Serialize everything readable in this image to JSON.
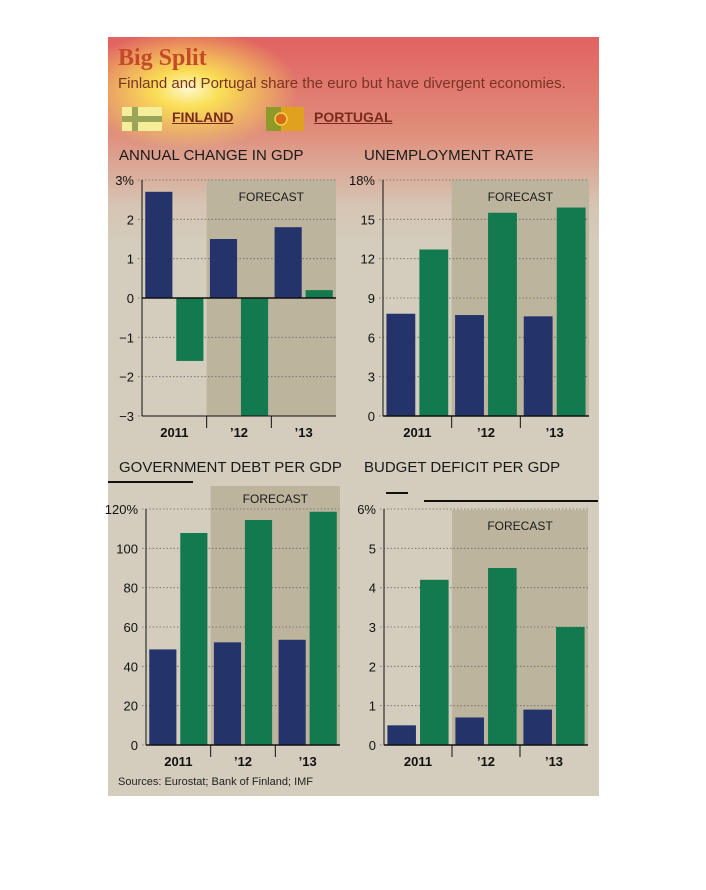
{
  "header": {
    "title": "Big Split",
    "subtitle": "Finland and Portugal share the euro but have divergent economies."
  },
  "legend": {
    "finland": "FINLAND",
    "portugal": "PORTUGAL"
  },
  "colors": {
    "finland": "#24346b",
    "portugal": "#13794f",
    "forecast_shade": "#bdb49e",
    "background": "#d4cdbd"
  },
  "forecast_label": "FORECAST",
  "sources": "Sources: Eurostat; Bank of Finland; IMF",
  "chart_data": [
    {
      "type": "bar",
      "title": "ANNUAL CHANGE IN GDP",
      "categories": [
        "2011",
        "’12",
        "’13"
      ],
      "series": [
        {
          "name": "FINLAND",
          "values": [
            2.7,
            1.5,
            1.8
          ]
        },
        {
          "name": "PORTUGAL",
          "values": [
            -1.6,
            -3.0,
            0.2
          ]
        }
      ],
      "ylim": [
        -3,
        3
      ],
      "yticks": [
        3,
        2,
        1,
        0,
        -1,
        -2,
        -3
      ],
      "ytick_labels": [
        "3%",
        "2",
        "1",
        "0",
        "−1",
        "−2",
        "−3"
      ],
      "forecast_from": 1,
      "grid": "dotted"
    },
    {
      "type": "bar",
      "title": "UNEMPLOYMENT RATE",
      "categories": [
        "2011",
        "’12",
        "’13"
      ],
      "series": [
        {
          "name": "FINLAND",
          "values": [
            7.8,
            7.7,
            7.6
          ]
        },
        {
          "name": "PORTUGAL",
          "values": [
            12.7,
            15.5,
            15.9
          ]
        }
      ],
      "ylim": [
        0,
        18
      ],
      "yticks": [
        18,
        15,
        12,
        9,
        6,
        3,
        0
      ],
      "ytick_labels": [
        "18%",
        "15",
        "12",
        "9",
        "6",
        "3",
        "0"
      ],
      "forecast_from": 1,
      "grid": "dotted"
    },
    {
      "type": "bar",
      "title": "GOVERNMENT DEBT PER GDP",
      "categories": [
        "2011",
        "’12",
        "’13"
      ],
      "series": [
        {
          "name": "FINLAND",
          "values": [
            48.6,
            52.2,
            53.5
          ]
        },
        {
          "name": "PORTUGAL",
          "values": [
            107.8,
            114.4,
            118.6
          ]
        }
      ],
      "ylim": [
        0,
        120
      ],
      "yticks": [
        120,
        100,
        80,
        60,
        40,
        20,
        0
      ],
      "ytick_labels": [
        "120%",
        "100",
        "80",
        "60",
        "40",
        "20",
        "0"
      ],
      "forecast_from": 1,
      "grid": "dotted"
    },
    {
      "type": "bar",
      "title": "BUDGET DEFICIT PER GDP",
      "categories": [
        "2011",
        "’12",
        "’13"
      ],
      "series": [
        {
          "name": "FINLAND",
          "values": [
            0.5,
            0.7,
            0.9
          ]
        },
        {
          "name": "PORTUGAL",
          "values": [
            4.2,
            4.5,
            3.0
          ]
        }
      ],
      "ylim": [
        0,
        6
      ],
      "yticks": [
        6,
        5,
        4,
        3,
        2,
        1,
        0
      ],
      "ytick_labels": [
        "6%",
        "5",
        "4",
        "3",
        "2",
        "1",
        "0"
      ],
      "forecast_from": 1,
      "grid": "dotted"
    }
  ]
}
